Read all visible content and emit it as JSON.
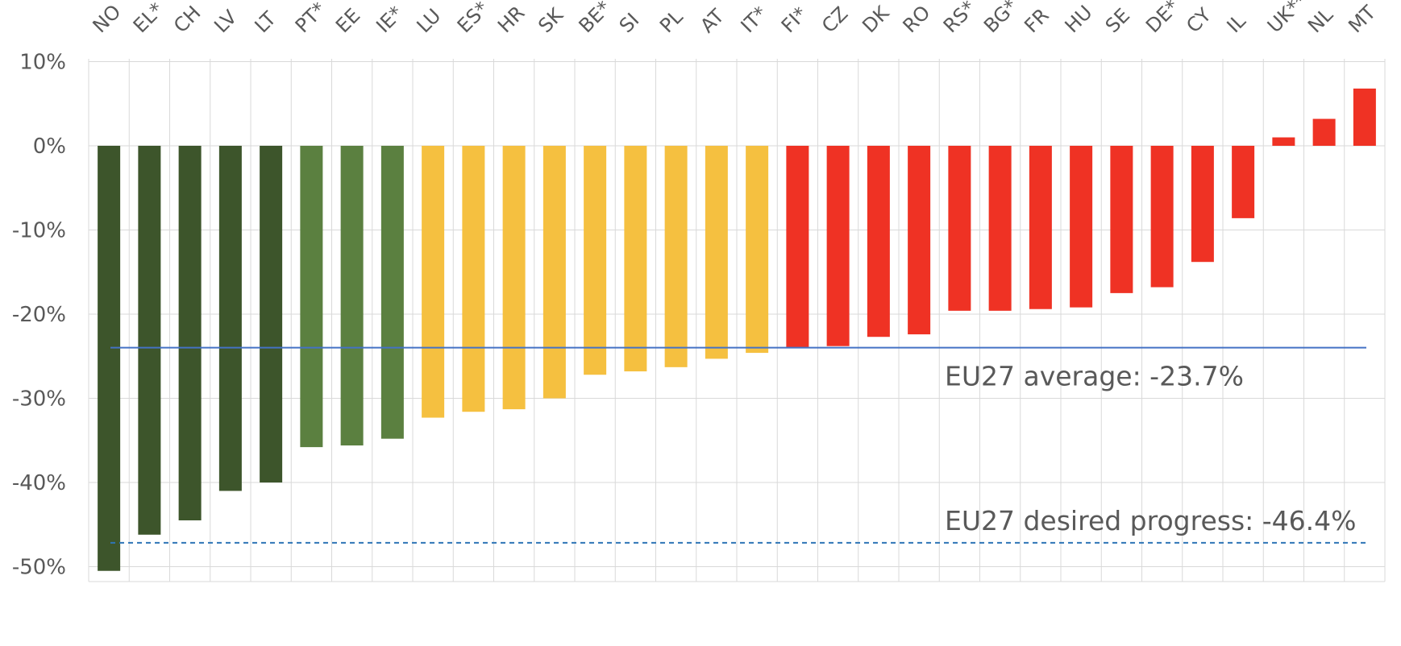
{
  "chart_data": {
    "type": "bar",
    "categories": [
      "NO",
      "EL*",
      "CH",
      "LV",
      "LT",
      "PT*",
      "EE",
      "IE*",
      "LU",
      "ES*",
      "HR",
      "SK",
      "BE*",
      "SI",
      "PL",
      "AT",
      "IT*",
      "FI*",
      "CZ",
      "DK",
      "RO",
      "RS*",
      "BG*",
      "FR",
      "HU",
      "SE",
      "DE*",
      "CY",
      "IL",
      "UK**",
      "NL",
      "MT"
    ],
    "values": [
      -50.5,
      -46.2,
      -44.5,
      -41.0,
      -40.0,
      -35.8,
      -35.6,
      -34.8,
      -32.3,
      -31.6,
      -31.3,
      -30.0,
      -27.2,
      -26.8,
      -26.3,
      -25.3,
      -24.6,
      -24.0,
      -23.8,
      -22.7,
      -22.4,
      -19.6,
      -19.6,
      -19.4,
      -19.2,
      -17.5,
      -16.8,
      -13.8,
      -8.6,
      1.0,
      3.2,
      6.8
    ],
    "bar_colors": [
      "#3d552b",
      "#3d552b",
      "#3d552b",
      "#3d552b",
      "#3d552b",
      "#5b8040",
      "#5b8040",
      "#5b8040",
      "#f5c040",
      "#f5c040",
      "#f5c040",
      "#f5c040",
      "#f5c040",
      "#f5c040",
      "#f5c040",
      "#f5c040",
      "#f5c040",
      "#ef3224",
      "#ef3224",
      "#ef3224",
      "#ef3224",
      "#ef3224",
      "#ef3224",
      "#ef3224",
      "#ef3224",
      "#ef3224",
      "#ef3224",
      "#ef3224",
      "#ef3224",
      "#ef3224",
      "#ef3224",
      "#ef3224"
    ],
    "y_ticks": [
      {
        "value": 10,
        "label": "10%"
      },
      {
        "value": 0,
        "label": "0%"
      },
      {
        "value": -10,
        "label": "-10%"
      },
      {
        "value": -20,
        "label": "-20%"
      },
      {
        "value": -30,
        "label": "-30%"
      },
      {
        "value": -40,
        "label": "-40%"
      },
      {
        "value": -50,
        "label": "-50%"
      }
    ],
    "ylim": [
      -52,
      10
    ],
    "grid": true,
    "reference_lines": [
      {
        "label": "EU27 average: -23.7%",
        "value": -23.7,
        "style": "solid",
        "color": "#4472c4"
      },
      {
        "label": "EU27 desired progress: -46.4%",
        "value": -46.4,
        "style": "dashed",
        "color": "#2e75b6"
      }
    ]
  }
}
